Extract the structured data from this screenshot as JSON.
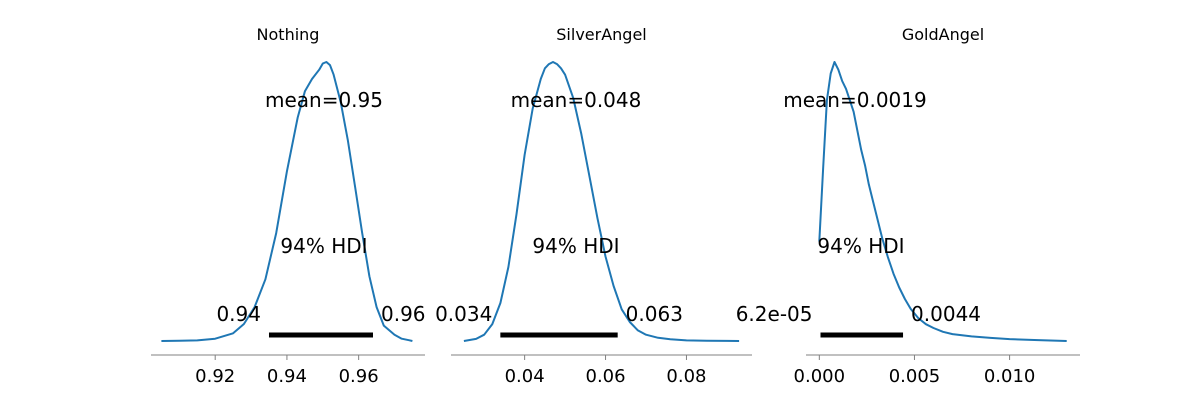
{
  "chart_data": [
    {
      "type": "line",
      "title": "Nothing",
      "mean_label": "mean=0.95",
      "hdi_label": "94% HDI",
      "hdi_low_label": "0.94",
      "hdi_high_label": "0.96",
      "hdi": [
        0.935,
        0.964
      ],
      "xlim": [
        0.9021,
        0.9785
      ],
      "xticks": [
        0.92,
        0.94,
        0.96
      ],
      "xtick_labels": [
        "0.92",
        "0.94",
        "0.96"
      ],
      "x": [
        0.905,
        0.91,
        0.915,
        0.92,
        0.925,
        0.928,
        0.931,
        0.934,
        0.937,
        0.94,
        0.943,
        0.945,
        0.947,
        0.949,
        0.95,
        0.951,
        0.952,
        0.953,
        0.955,
        0.957,
        0.959,
        0.961,
        0.963,
        0.965,
        0.967,
        0.97,
        0.972,
        0.974,
        0.975
      ],
      "density": [
        0.0,
        0.2,
        0.4,
        1.5,
        5.0,
        11.0,
        22.0,
        40.0,
        70.0,
        110.0,
        145.0,
        162.0,
        170.0,
        176.0,
        180.0,
        181.0,
        179.0,
        173.0,
        155.0,
        130.0,
        100.0,
        70.0,
        42.0,
        22.0,
        10.0,
        4.0,
        1.5,
        0.5,
        0.0
      ]
    },
    {
      "type": "line",
      "title": "SilverAngel",
      "mean_label": "mean=0.048",
      "hdi_label": "94% HDI",
      "hdi_low_label": "0.034",
      "hdi_high_label": "0.063",
      "hdi": [
        0.034,
        0.063
      ],
      "xlim": [
        0.0218,
        0.0962
      ],
      "xticks": [
        0.04,
        0.06,
        0.08
      ],
      "xtick_labels": [
        "0.04",
        "0.06",
        "0.08"
      ],
      "x": [
        0.025,
        0.028,
        0.03,
        0.032,
        0.034,
        0.036,
        0.038,
        0.04,
        0.042,
        0.044,
        0.045,
        0.046,
        0.047,
        0.048,
        0.049,
        0.05,
        0.052,
        0.054,
        0.056,
        0.058,
        0.06,
        0.062,
        0.064,
        0.066,
        0.068,
        0.07,
        0.073,
        0.076,
        0.08,
        0.085,
        0.09,
        0.093
      ],
      "density": [
        0.0,
        1.0,
        3.0,
        8.0,
        18.0,
        35.0,
        60.0,
        88.0,
        110.0,
        124.0,
        129.0,
        131.0,
        132.0,
        131.0,
        129.0,
        126.0,
        115.0,
        98.0,
        78.0,
        58.0,
        40.0,
        26.0,
        15.0,
        9.0,
        5.0,
        3.0,
        1.5,
        0.8,
        0.3,
        0.1,
        0.05,
        0.0
      ]
    },
    {
      "type": "line",
      "title": "GoldAngel",
      "mean_label": "mean=0.0019",
      "hdi_label": "94% HDI",
      "hdi_low_label": "6.2e-05",
      "hdi_high_label": "0.0044",
      "hdi": [
        6.2e-05,
        0.0044
      ],
      "xlim": [
        -0.0007,
        0.0137
      ],
      "xticks": [
        0.0,
        0.005,
        0.01
      ],
      "xtick_labels": [
        "0.000",
        "0.005",
        "0.010"
      ],
      "x": [
        0.0,
        0.0002,
        0.0004,
        0.0006,
        0.0008,
        0.001,
        0.0012,
        0.0014,
        0.0016,
        0.0018,
        0.002,
        0.0022,
        0.0024,
        0.0026,
        0.0028,
        0.003,
        0.0033,
        0.0036,
        0.0039,
        0.0042,
        0.0045,
        0.0048,
        0.0052,
        0.0056,
        0.006,
        0.0065,
        0.007,
        0.008,
        0.009,
        0.01,
        0.0115,
        0.013
      ],
      "density": [
        130.0,
        225.0,
        315.0,
        350.0,
        365.0,
        355.0,
        340.0,
        330.0,
        315.0,
        300.0,
        275.0,
        250.0,
        230.0,
        205.0,
        185.0,
        165.0,
        135.0,
        110.0,
        88.0,
        70.0,
        55.0,
        42.0,
        30.0,
        22.0,
        17.0,
        12.0,
        9.0,
        6.0,
        4.0,
        2.5,
        1.2,
        0.0
      ]
    }
  ],
  "colors": {
    "kde": "#1f77b4",
    "hdi": "#000000",
    "axis": "#808080"
  }
}
